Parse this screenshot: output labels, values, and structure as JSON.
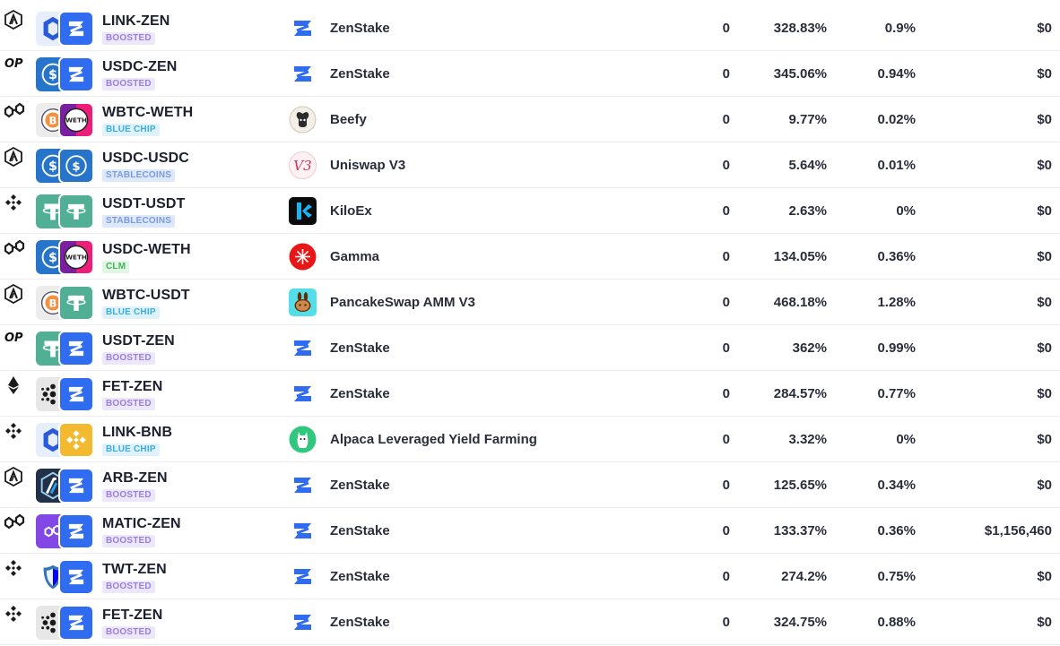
{
  "rows": [
    {
      "chain": "arbitrum",
      "token_a": "link",
      "token_b": "zen",
      "pair": "LINK-ZEN",
      "badge": "BOOSTED",
      "badge_type": "boosted",
      "protocol_icon": "zenstake",
      "protocol": "ZenStake",
      "col_a": "0",
      "apr": "328.83%",
      "daily": "0.9%",
      "tvl": "$0"
    },
    {
      "chain": "optimism",
      "token_a": "usdc",
      "token_b": "zen",
      "pair": "USDC-ZEN",
      "badge": "BOOSTED",
      "badge_type": "boosted",
      "protocol_icon": "zenstake",
      "protocol": "ZenStake",
      "col_a": "0",
      "apr": "345.06%",
      "daily": "0.94%",
      "tvl": "$0"
    },
    {
      "chain": "polygon",
      "token_a": "wbtc",
      "token_b": "weth",
      "pair": "WBTC-WETH",
      "badge": "BLUE CHIP",
      "badge_type": "bluechip",
      "protocol_icon": "beefy",
      "protocol": "Beefy",
      "col_a": "0",
      "apr": "9.77%",
      "daily": "0.02%",
      "tvl": "$0"
    },
    {
      "chain": "arbitrum",
      "token_a": "usdc",
      "token_b": "usdc",
      "pair": "USDC-USDC",
      "badge": "STABLECOINS",
      "badge_type": "stable",
      "protocol_icon": "uniswap",
      "protocol": "Uniswap V3",
      "col_a": "0",
      "apr": "5.64%",
      "daily": "0.01%",
      "tvl": "$0"
    },
    {
      "chain": "bnb",
      "token_a": "usdt",
      "token_b": "usdt",
      "pair": "USDT-USDT",
      "badge": "STABLECOINS",
      "badge_type": "stable",
      "protocol_icon": "kiloex",
      "protocol": "KiloEx",
      "col_a": "0",
      "apr": "2.63%",
      "daily": "0%",
      "tvl": "$0"
    },
    {
      "chain": "polygon",
      "token_a": "usdc",
      "token_b": "weth",
      "pair": "USDC-WETH",
      "badge": "CLM",
      "badge_type": "clm",
      "protocol_icon": "gamma",
      "protocol": "Gamma",
      "col_a": "0",
      "apr": "134.05%",
      "daily": "0.36%",
      "tvl": "$0"
    },
    {
      "chain": "arbitrum",
      "token_a": "wbtc",
      "token_b": "usdt",
      "pair": "WBTC-USDT",
      "badge": "BLUE CHIP",
      "badge_type": "bluechip",
      "protocol_icon": "pancakeswap",
      "protocol": "PancakeSwap AMM V3",
      "col_a": "0",
      "apr": "468.18%",
      "daily": "1.28%",
      "tvl": "$0"
    },
    {
      "chain": "optimism",
      "token_a": "usdt",
      "token_b": "zen",
      "pair": "USDT-ZEN",
      "badge": "BOOSTED",
      "badge_type": "boosted",
      "protocol_icon": "zenstake",
      "protocol": "ZenStake",
      "col_a": "0",
      "apr": "362%",
      "daily": "0.99%",
      "tvl": "$0"
    },
    {
      "chain": "ethereum",
      "token_a": "fet",
      "token_b": "zen",
      "pair": "FET-ZEN",
      "badge": "BOOSTED",
      "badge_type": "boosted",
      "protocol_icon": "zenstake",
      "protocol": "ZenStake",
      "col_a": "0",
      "apr": "284.57%",
      "daily": "0.77%",
      "tvl": "$0"
    },
    {
      "chain": "bnb",
      "token_a": "link",
      "token_b": "bnb",
      "pair": "LINK-BNB",
      "badge": "BLUE CHIP",
      "badge_type": "bluechip",
      "protocol_icon": "alpaca",
      "protocol": "Alpaca Leveraged Yield Farming",
      "col_a": "0",
      "apr": "3.32%",
      "daily": "0%",
      "tvl": "$0"
    },
    {
      "chain": "arbitrum",
      "token_a": "arb",
      "token_b": "zen",
      "pair": "ARB-ZEN",
      "badge": "BOOSTED",
      "badge_type": "boosted",
      "protocol_icon": "zenstake",
      "protocol": "ZenStake",
      "col_a": "0",
      "apr": "125.65%",
      "daily": "0.34%",
      "tvl": "$0"
    },
    {
      "chain": "polygon",
      "token_a": "matic",
      "token_b": "zen",
      "pair": "MATIC-ZEN",
      "badge": "BOOSTED",
      "badge_type": "boosted",
      "protocol_icon": "zenstake",
      "protocol": "ZenStake",
      "col_a": "0",
      "apr": "133.37%",
      "daily": "0.36%",
      "tvl": "$1,156,460"
    },
    {
      "chain": "bnb",
      "token_a": "twt",
      "token_b": "zen",
      "pair": "TWT-ZEN",
      "badge": "BOOSTED",
      "badge_type": "boosted",
      "protocol_icon": "zenstake",
      "protocol": "ZenStake",
      "col_a": "0",
      "apr": "274.2%",
      "daily": "0.75%",
      "tvl": "$0"
    },
    {
      "chain": "bnb",
      "token_a": "fet",
      "token_b": "zen",
      "pair": "FET-ZEN",
      "badge": "BOOSTED",
      "badge_type": "boosted",
      "protocol_icon": "zenstake",
      "protocol": "ZenStake",
      "col_a": "0",
      "apr": "324.75%",
      "daily": "0.88%",
      "tvl": "$0"
    }
  ]
}
